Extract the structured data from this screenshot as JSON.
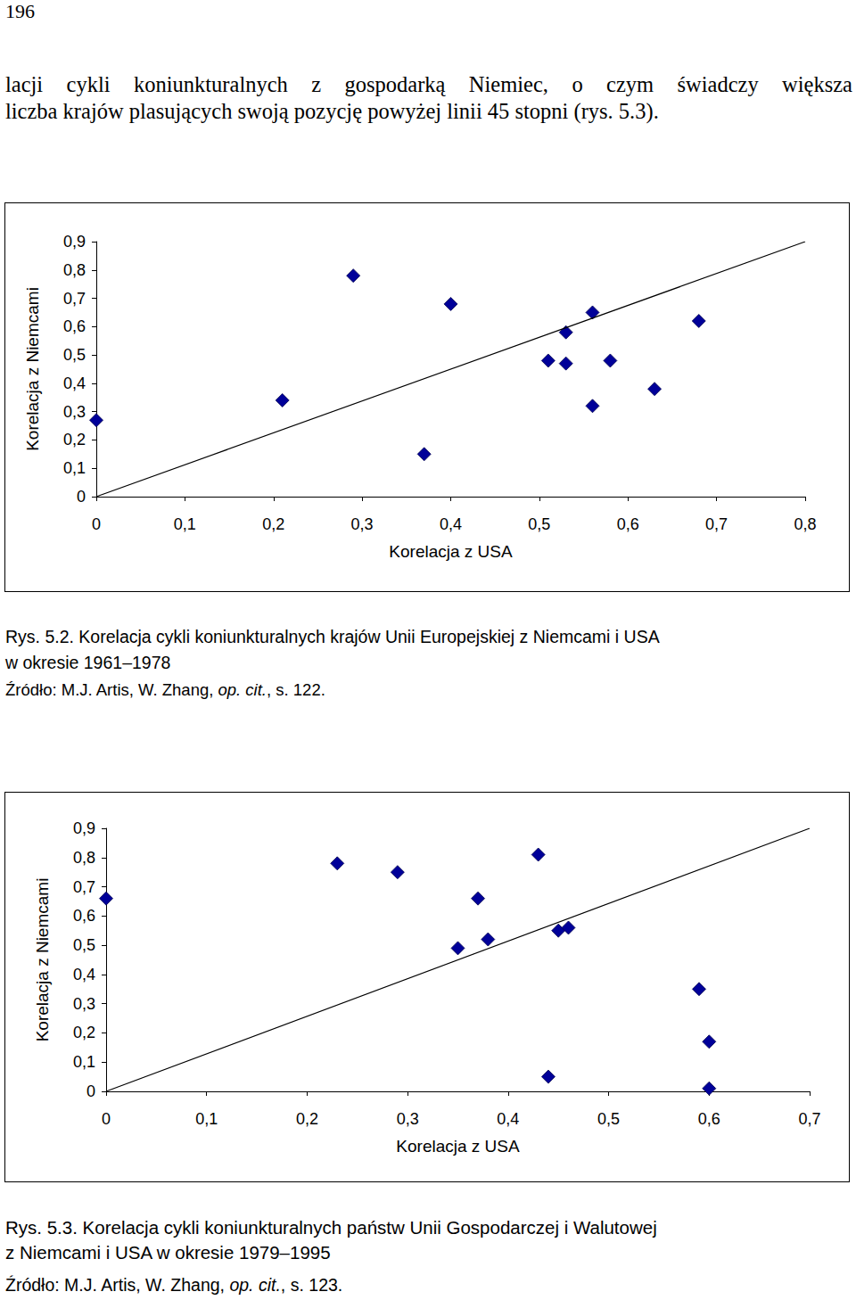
{
  "document": {
    "page_number": "196",
    "paragraph": [
      "lacji cykli koniunkturalnych z gospodarką Niemiec, o czym świadczy większa",
      "liczba krajów plasujących swoją pozycję powyżej linii 45 stopni (rys. 5.3)."
    ],
    "figures": [
      {
        "caption": [
          "Rys. 5.2. Korelacja cykli koniunkturalnych krajów Unii Europejskiej z Niemcami i USA",
          "w okresie 1961–1978"
        ],
        "source": {
          "text": "Źródło: M.J. Artis, W. Zhang, ",
          "italic": "op. cit.",
          "after": ", s. 122."
        }
      },
      {
        "caption": [
          "Rys. 5.3. Korelacja cykli koniunkturalnych państw Unii Gospodarczej i Walutowej",
          "z Niemcami i USA w okresie 1979–1995"
        ],
        "source": {
          "text": "Źródło: M.J. Artis, W. Zhang, ",
          "italic": "op. cit.",
          "after": ", s. 123."
        }
      }
    ]
  },
  "chart_data": [
    {
      "type": "scatter",
      "x_label": "Korelacja z USA",
      "y_label": "Korelacja z Niemcami",
      "xlim": [
        0,
        0.8
      ],
      "xticks": [
        0,
        {
          "value": 0.1,
          "label": "0,1"
        },
        {
          "value": 0.2,
          "label": "0,2"
        },
        {
          "value": 0.3,
          "label": "0,3"
        },
        {
          "value": 0.4,
          "label": "0,4"
        },
        {
          "value": 0.5,
          "label": "0,5"
        },
        {
          "value": 0.6,
          "label": "0,6"
        },
        {
          "value": 0.7,
          "label": "0,7"
        },
        {
          "value": 0.8,
          "label": "0,8"
        }
      ],
      "ylim": [
        0,
        0.9
      ],
      "yticks": [
        0,
        {
          "value": 0.1,
          "label": "0,1"
        },
        {
          "value": 0.2,
          "label": "0,2"
        },
        {
          "value": 0.3,
          "label": "0,3"
        },
        {
          "value": 0.4,
          "label": "0,4"
        },
        {
          "value": 0.5,
          "label": "0,5"
        },
        {
          "value": 0.6,
          "label": "0,6"
        },
        {
          "value": 0.7,
          "label": "0,7"
        },
        {
          "value": 0.8,
          "label": "0,8"
        },
        {
          "value": 0.9,
          "label": "0,9"
        }
      ],
      "grid": false,
      "series": [
        {
          "type": "scatter",
          "marker": "diamond",
          "color": "#000099",
          "x": [
            0,
            0.29,
            0.21,
            0.4,
            0.37,
            0.53,
            0.51,
            0.53,
            0.56,
            0.56,
            0.58,
            0.63,
            0.68
          ],
          "values": [
            0.27,
            0.78,
            0.34,
            0.68,
            0.15,
            0.58,
            0.48,
            0.47,
            0.65,
            0.32,
            0.48,
            0.38,
            0.62
          ]
        },
        {
          "type": "line",
          "line_style": "solid",
          "color": "#000000",
          "x": [
            0,
            0.8
          ],
          "values": [
            0,
            0.9
          ]
        }
      ]
    },
    {
      "type": "scatter",
      "x_label": "Korelacja z USA",
      "y_label": "Korelacja z Niemcami",
      "xlim": [
        0,
        0.7
      ],
      "xticks": [
        0,
        {
          "value": 0.1,
          "label": "0,1"
        },
        {
          "value": 0.2,
          "label": "0,2"
        },
        {
          "value": 0.3,
          "label": "0,3"
        },
        {
          "value": 0.4,
          "label": "0,4"
        },
        {
          "value": 0.5,
          "label": "0,5"
        },
        {
          "value": 0.6,
          "label": "0,6"
        },
        {
          "value": 0.7,
          "label": "0,7"
        }
      ],
      "ylim": [
        0,
        0.9
      ],
      "yticks": [
        0,
        {
          "value": 0.1,
          "label": "0,1"
        },
        {
          "value": 0.2,
          "label": "0,2"
        },
        {
          "value": 0.3,
          "label": "0,3"
        },
        {
          "value": 0.4,
          "label": "0,4"
        },
        {
          "value": 0.5,
          "label": "0,5"
        },
        {
          "value": 0.6,
          "label": "0,6"
        },
        {
          "value": 0.7,
          "label": "0,7"
        },
        {
          "value": 0.8,
          "label": "0,8"
        },
        {
          "value": 0.9,
          "label": "0,9"
        }
      ],
      "grid": false,
      "series": [
        {
          "type": "scatter",
          "marker": "diamond",
          "color": "#000099",
          "x": [
            0,
            0.23,
            0.29,
            0.43,
            0.37,
            0.35,
            0.38,
            0.45,
            0.46,
            0.59,
            0.6,
            0.44,
            0.6
          ],
          "values": [
            0.66,
            0.78,
            0.75,
            0.81,
            0.66,
            0.49,
            0.52,
            0.55,
            0.56,
            0.35,
            0.17,
            0.05,
            0.01
          ]
        },
        {
          "type": "line",
          "line_style": "solid",
          "color": "#000000",
          "x": [
            0,
            0.7
          ],
          "values": [
            0,
            0.9
          ]
        }
      ]
    }
  ]
}
